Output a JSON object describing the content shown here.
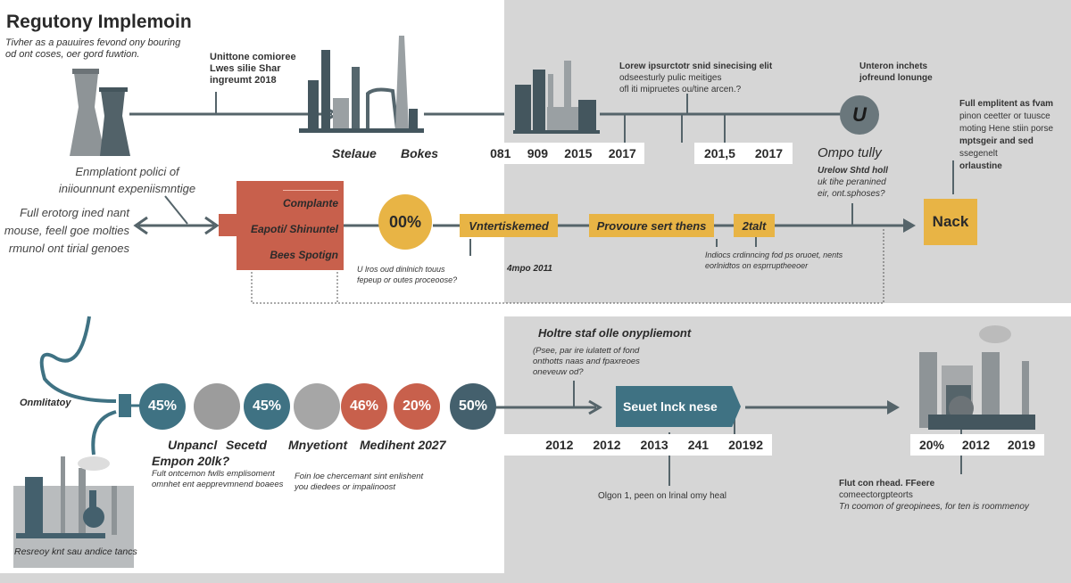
{
  "title": "Regutony Implemoin",
  "subtitle": [
    "Tivher as a pauuires fevond ony bouring",
    "od ont coses, oer gord fuwtion."
  ],
  "top": {
    "note1": [
      "Unittone comioree",
      "Lwes silie Shar",
      "ingreumt 2018"
    ],
    "factory_labels": [
      "Stelaue",
      "Bokes"
    ],
    "years_a": [
      "081",
      "909",
      "2015",
      "2017"
    ],
    "years_b": [
      "201,5",
      "2017"
    ],
    "note2": [
      "Lorew ipsurctotr snid sinecising elit",
      "odseesturly pulic meitiges",
      "ofl iti mipruetes ou/tine arcen.?"
    ],
    "note3": [
      "Unteron inchets",
      "jofreund lonunge"
    ],
    "circle_letter": "U",
    "omp_title": "Ompo tully",
    "omp_text": [
      "Urelow Shtd holl",
      "uk tihe peranined",
      "eir, ont.sphoses?"
    ],
    "right_text": [
      "Full emplitent as fvam",
      "pinon ceetter or tuusce",
      "moting Hene stiin porse",
      "mptsgeir and sed",
      "ssegenelt",
      "orlaustine"
    ]
  },
  "middle": {
    "left_title": [
      "Enmplationt polici of",
      "iniiounnunt expeniismntige"
    ],
    "left_text": [
      "Full erotorg ined nant",
      "mouse, feell goe molties",
      "rmunol ont tirial genoes"
    ],
    "red_box": [
      "Complante",
      "Eapoti/ Shinuntel",
      "Bees Spotign"
    ],
    "percent": "00%",
    "boxes": [
      "Vntertiskemed",
      "Provoure sert thens",
      "2talt"
    ],
    "final_box": "Nack",
    "under_text": [
      "U lros oud dinlnich touus",
      "fepeup or outes proceoose?"
    ],
    "under_year": "4mpo 2011",
    "under_right": [
      "Indiocs crdinncing fod ps oruoet, nents",
      "eorlnidtos on esprruptheeoer"
    ]
  },
  "bottom": {
    "horn_label": "Onmlitatoy",
    "circles": [
      {
        "label": "45%",
        "color": "#3f7283"
      },
      {
        "label": "",
        "color": "#9c9c9c"
      },
      {
        "label": "45%",
        "color": "#3f7283"
      },
      {
        "label": "",
        "color": "#a6a6a6"
      },
      {
        "label": "46%",
        "color": "#c8604c"
      },
      {
        "label": "20%",
        "color": "#c8604c"
      },
      {
        "label": "50%",
        "color": "#44606d"
      }
    ],
    "circle_labels": [
      "Unpancl",
      "Secetd",
      "Mnyetiont",
      "Medihent 2027"
    ],
    "empon": "Empon 20lk?",
    "text_a": [
      "Fult ontcemon fwlls emplisoment",
      "omnhet ent aepprevmnend boaees"
    ],
    "text_b": [
      "Foin loe chercemant sint enlishent",
      "you diedees or impalinoost"
    ],
    "factory_label": "Resreoy knt sau andice tancs",
    "heading": "Holtre staf olle onypliemont",
    "heading_text": [
      "(Psee, par ire iulatett of fond",
      "onthotts naas and fpaxreoes",
      "oneveuw od?"
    ],
    "arrow_box": "Seuet lnck nese",
    "years": [
      "2012",
      "2012",
      "2013",
      "241",
      "20192"
    ],
    "olgon": "Olgon 1, peen on lrinal omy heal",
    "right_years": [
      "20%",
      "2012",
      "2019"
    ],
    "right_text": [
      "Flut con rhead. FFeere",
      "comeectorgpteorts",
      "Tn coomon of greopinees, for ten is roommenoy"
    ]
  },
  "colors": {
    "teal": "#3f7283",
    "red": "#c8604c",
    "yellow": "#e8b445",
    "slate": "#55646a",
    "panel": "#d6d6d6"
  }
}
